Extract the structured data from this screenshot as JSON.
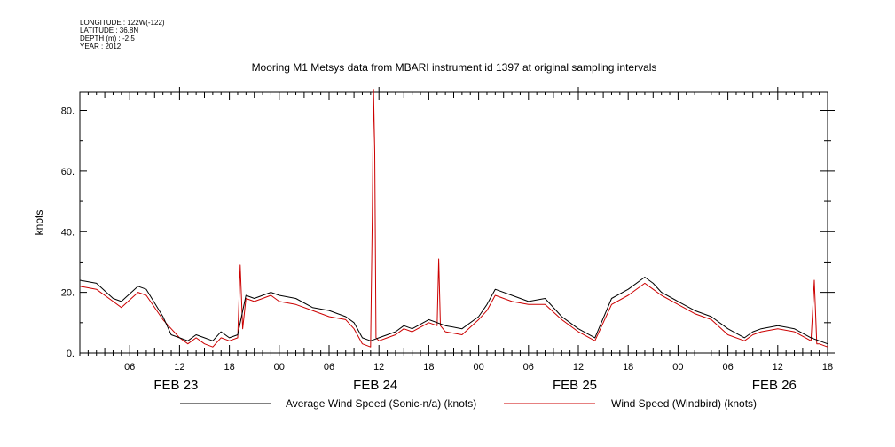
{
  "header": {
    "longitude": "LONGITUDE : 122W(-122)",
    "latitude": "LATITUDE : 36.8N",
    "depth": "DEPTH (m) : -2.5",
    "year": "YEAR : 2012"
  },
  "chart_data": {
    "type": "line",
    "title": "Mooring M1 Metsys data from MBARI instrument id 1397 at original sampling intervals",
    "ylabel": "knots",
    "xlabel": "",
    "ylim": [
      0,
      86
    ],
    "yticks": [
      "0.",
      "20.",
      "40.",
      "60.",
      "80."
    ],
    "xlim_hours": [
      0,
      90
    ],
    "hour_ticks": [
      "06",
      "12",
      "18",
      "00",
      "06",
      "12",
      "18",
      "00",
      "06",
      "12",
      "18",
      "00",
      "06",
      "12",
      "18"
    ],
    "day_labels": [
      "FEB 23",
      "FEB 24",
      "FEB 25",
      "FEB 26"
    ],
    "grid": false,
    "legend_position": "bottom",
    "colors": {
      "sonic": "#000000",
      "windbird": "#cc0000"
    },
    "series": [
      {
        "name": "Average Wind Speed (Sonic-n/a) (knots)",
        "color": "#000000",
        "x": [
          0,
          2,
          4,
          5,
          7,
          8,
          10,
          11,
          12,
          13,
          14,
          15,
          16,
          17,
          18,
          19,
          20,
          21,
          22,
          23,
          24,
          26,
          28,
          30,
          32,
          33,
          34,
          35,
          36,
          37,
          38,
          39,
          40,
          42,
          44,
          46,
          48,
          49,
          50,
          52,
          54,
          56,
          58,
          60,
          62,
          64,
          66,
          68,
          69,
          70,
          72,
          74,
          76,
          78,
          80,
          81,
          82,
          84,
          86,
          88,
          89,
          90
        ],
        "y": [
          24,
          23,
          18,
          17,
          22,
          21,
          12,
          6,
          5,
          4,
          6,
          5,
          4,
          7,
          5,
          6,
          19,
          18,
          19,
          20,
          19,
          18,
          15,
          14,
          12,
          10,
          5,
          4,
          5,
          6,
          7,
          9,
          8,
          11,
          9,
          8,
          12,
          16,
          21,
          19,
          17,
          18,
          12,
          8,
          5,
          18,
          21,
          25,
          23,
          20,
          17,
          14,
          12,
          8,
          5,
          7,
          8,
          9,
          8,
          5,
          4,
          3
        ]
      },
      {
        "name": "Wind Speed (Windbird) (knots)",
        "color": "#cc0000",
        "x": [
          0,
          2,
          4,
          5,
          7,
          8,
          10,
          11,
          12,
          13,
          14,
          15,
          16,
          17,
          18,
          19,
          19.3,
          19.6,
          20,
          21,
          22,
          23,
          24,
          26,
          28,
          30,
          32,
          33,
          34,
          35,
          35.2,
          35.35,
          35.5,
          35.65,
          36,
          37,
          38,
          39,
          40,
          42,
          43,
          43.2,
          43.4,
          44,
          46,
          48,
          49,
          50,
          52,
          54,
          56,
          58,
          60,
          62,
          64,
          66,
          68,
          69,
          70,
          72,
          74,
          76,
          78,
          80,
          81,
          82,
          84,
          86,
          88,
          88.4,
          88.7,
          89,
          90
        ],
        "y": [
          22,
          21,
          17,
          15,
          20,
          19,
          11,
          8,
          5,
          3,
          5,
          3,
          2,
          5,
          4,
          5,
          29,
          8,
          18,
          17,
          18,
          19,
          17,
          16,
          14,
          12,
          11,
          8,
          3,
          2,
          45,
          87,
          66,
          5,
          4,
          5,
          6,
          8,
          7,
          10,
          9,
          31,
          9,
          7,
          6,
          11,
          14,
          19,
          17,
          16,
          16,
          11,
          7,
          4,
          16,
          19,
          23,
          21,
          19,
          16,
          13,
          11,
          6,
          4,
          6,
          7,
          8,
          7,
          4,
          24,
          3,
          3,
          2
        ]
      }
    ]
  }
}
